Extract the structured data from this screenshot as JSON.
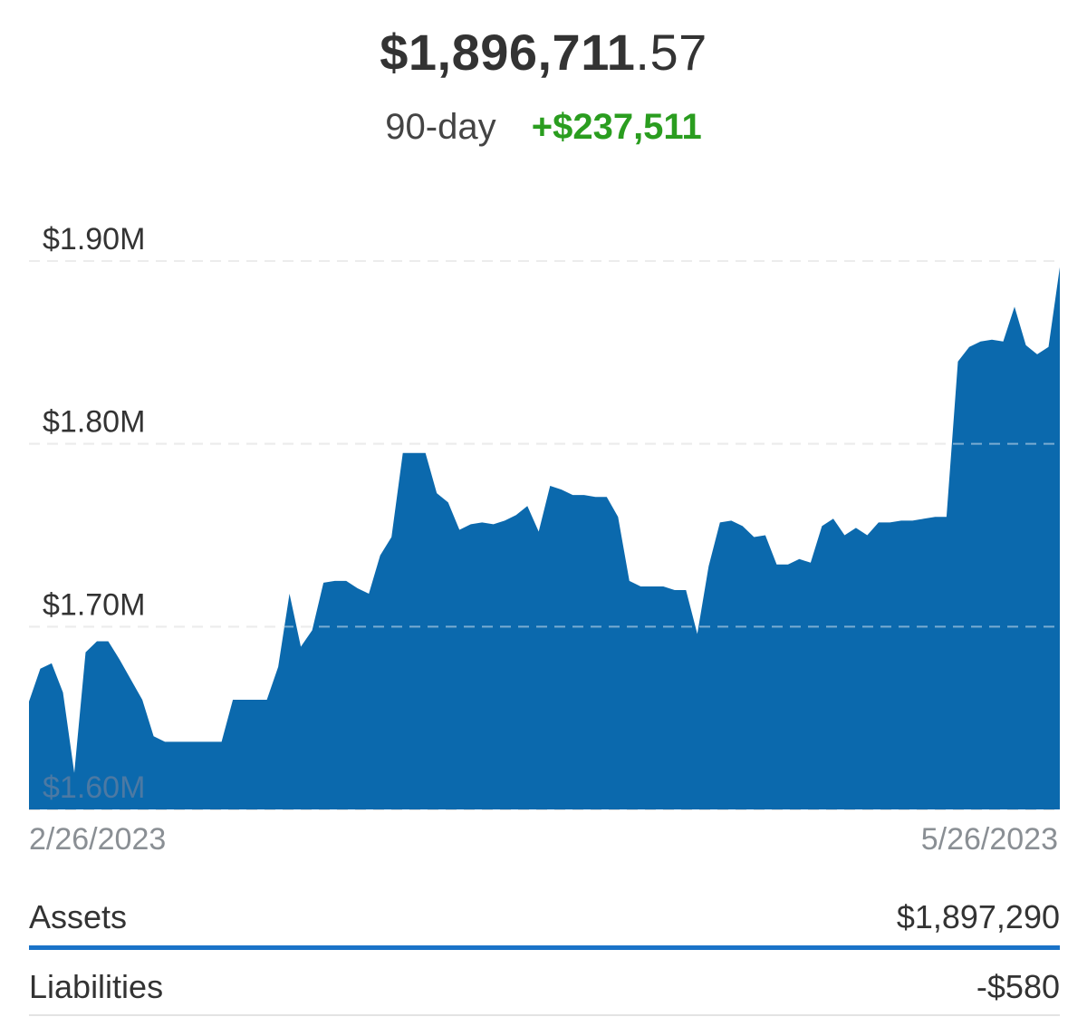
{
  "header": {
    "networth_whole": "$1,896,711",
    "networth_cents": ".57",
    "period_label": "90-day",
    "change_value": "+$237,511"
  },
  "colors": {
    "area_fill": "#0b69ad",
    "positive_change": "#2a9d1f",
    "assets_bar": "#1a73c8",
    "gridline": "#dddddd"
  },
  "chart_data": {
    "type": "area",
    "title": "",
    "xlabel": "",
    "ylabel": "",
    "x_start_label": "2/26/2023",
    "x_end_label": "5/26/2023",
    "ylim": [
      1600000,
      1900000
    ],
    "y_ticks": [
      {
        "value": 1900000,
        "label": "$1.90M"
      },
      {
        "value": 1800000,
        "label": "$1.80M"
      },
      {
        "value": 1700000,
        "label": "$1.70M"
      },
      {
        "value": 1600000,
        "label": "$1.60M"
      }
    ],
    "grid": true,
    "series": [
      {
        "values": [
          1659000,
          1677000,
          1680000,
          1664000,
          1620000,
          1686000,
          1692000,
          1692000,
          1682000,
          1671000,
          1660000,
          1640000,
          1637000,
          1637000,
          1637000,
          1637000,
          1637000,
          1637000,
          1660000,
          1660000,
          1660000,
          1660000,
          1678000,
          1718000,
          1689000,
          1698000,
          1724000,
          1725000,
          1725000,
          1721000,
          1718000,
          1739000,
          1749000,
          1795000,
          1795000,
          1795000,
          1773000,
          1768000,
          1753000,
          1756000,
          1757000,
          1756000,
          1758000,
          1761000,
          1766000,
          1752000,
          1777000,
          1775000,
          1772000,
          1772000,
          1771000,
          1771000,
          1760000,
          1725000,
          1722000,
          1722000,
          1722000,
          1720000,
          1720000,
          1696000,
          1733000,
          1757000,
          1758000,
          1755000,
          1749000,
          1750000,
          1734000,
          1734000,
          1737000,
          1735000,
          1755000,
          1759000,
          1750000,
          1754000,
          1750000,
          1757000,
          1757000,
          1758000,
          1758000,
          1759000,
          1760000,
          1760000,
          1845000,
          1853000,
          1856000,
          1857000,
          1856000,
          1875000,
          1854000,
          1849000,
          1853000,
          1896700
        ]
      }
    ]
  },
  "summary": {
    "assets_label": "Assets",
    "assets_value": "$1,897,290",
    "liabilities_label": "Liabilities",
    "liabilities_value": "-$580"
  }
}
